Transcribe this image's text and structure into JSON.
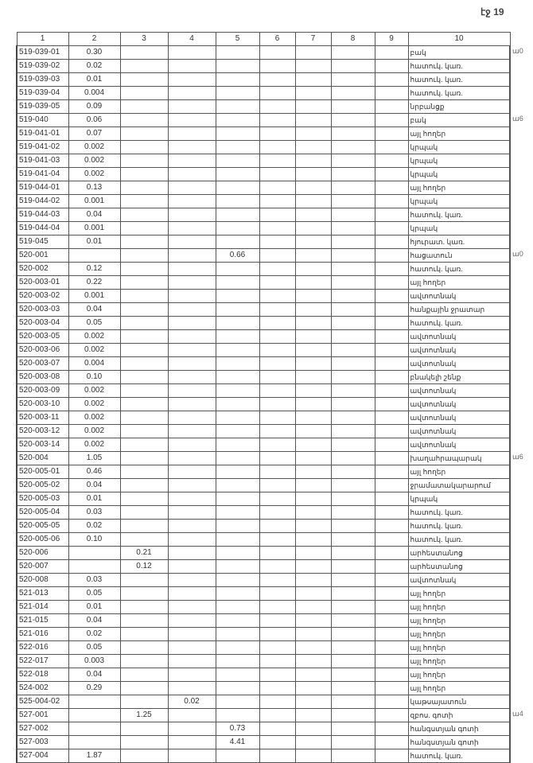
{
  "page_number": "էջ 19",
  "headers": [
    "1",
    "2",
    "3",
    "4",
    "5",
    "6",
    "7",
    "8",
    "9",
    "10"
  ],
  "rows": [
    [
      "519-039-01",
      "0.30",
      "",
      "",
      "",
      "",
      "",
      "",
      "",
      "բակ"
    ],
    [
      "519-039-02",
      "0.02",
      "",
      "",
      "",
      "",
      "",
      "",
      "",
      "հատուկ. կառ."
    ],
    [
      "519-039-03",
      "0.01",
      "",
      "",
      "",
      "",
      "",
      "",
      "",
      "հատուկ. կառ."
    ],
    [
      "519-039-04",
      "0.004",
      "",
      "",
      "",
      "",
      "",
      "",
      "",
      "հատուկ. կառ."
    ],
    [
      "519-039-05",
      "0.09",
      "",
      "",
      "",
      "",
      "",
      "",
      "",
      "նրբանցք"
    ],
    [
      "519-040",
      "0.06",
      "",
      "",
      "",
      "",
      "",
      "",
      "",
      "բակ"
    ],
    [
      "519-041-01",
      "0.07",
      "",
      "",
      "",
      "",
      "",
      "",
      "",
      "այլ հողեր"
    ],
    [
      "519-041-02",
      "0.002",
      "",
      "",
      "",
      "",
      "",
      "",
      "",
      "կրպակ"
    ],
    [
      "519-041-03",
      "0.002",
      "",
      "",
      "",
      "",
      "",
      "",
      "",
      "կրպակ"
    ],
    [
      "519-041-04",
      "0.002",
      "",
      "",
      "",
      "",
      "",
      "",
      "",
      "կրպակ"
    ],
    [
      "519-044-01",
      "0.13",
      "",
      "",
      "",
      "",
      "",
      "",
      "",
      "այլ հողեր"
    ],
    [
      "519-044-02",
      "0.001",
      "",
      "",
      "",
      "",
      "",
      "",
      "",
      "կրպակ"
    ],
    [
      "519-044-03",
      "0.04",
      "",
      "",
      "",
      "",
      "",
      "",
      "",
      "հատուկ. կառ."
    ],
    [
      "519-044-04",
      "0.001",
      "",
      "",
      "",
      "",
      "",
      "",
      "",
      "կրպակ"
    ],
    [
      "519-045",
      "0.01",
      "",
      "",
      "",
      "",
      "",
      "",
      "",
      "հյուրատ. կառ."
    ],
    [
      "520-001",
      "",
      "",
      "",
      "0.66",
      "",
      "",
      "",
      "",
      "հացատուն"
    ],
    [
      "520-002",
      "0.12",
      "",
      "",
      "",
      "",
      "",
      "",
      "",
      "հատուկ. կառ."
    ],
    [
      "520-003-01",
      "0.22",
      "",
      "",
      "",
      "",
      "",
      "",
      "",
      "այլ հողեր"
    ],
    [
      "520-003-02",
      "0.001",
      "",
      "",
      "",
      "",
      "",
      "",
      "",
      "ավտոտնակ"
    ],
    [
      "520-003-03",
      "0.04",
      "",
      "",
      "",
      "",
      "",
      "",
      "",
      "հանքային ջրատար"
    ],
    [
      "520-003-04",
      "0.05",
      "",
      "",
      "",
      "",
      "",
      "",
      "",
      "հատուկ. կառ."
    ],
    [
      "520-003-05",
      "0.002",
      "",
      "",
      "",
      "",
      "",
      "",
      "",
      "ավտոտնակ"
    ],
    [
      "520-003-06",
      "0.002",
      "",
      "",
      "",
      "",
      "",
      "",
      "",
      "ավտոտնակ"
    ],
    [
      "520-003-07",
      "0.004",
      "",
      "",
      "",
      "",
      "",
      "",
      "",
      "ավտոտնակ"
    ],
    [
      "520-003-08",
      "0.10",
      "",
      "",
      "",
      "",
      "",
      "",
      "",
      "բնակելի շենք"
    ],
    [
      "520-003-09",
      "0.002",
      "",
      "",
      "",
      "",
      "",
      "",
      "",
      "ավտոտնակ"
    ],
    [
      "520-003-10",
      "0.002",
      "",
      "",
      "",
      "",
      "",
      "",
      "",
      "ավտոտնակ"
    ],
    [
      "520-003-11",
      "0.002",
      "",
      "",
      "",
      "",
      "",
      "",
      "",
      "ավտոտնակ"
    ],
    [
      "520-003-12",
      "0.002",
      "",
      "",
      "",
      "",
      "",
      "",
      "",
      "ավտոտնակ"
    ],
    [
      "520-003-14",
      "0.002",
      "",
      "",
      "",
      "",
      "",
      "",
      "",
      "ավտոտնակ"
    ],
    [
      "520-004",
      "1.05",
      "",
      "",
      "",
      "",
      "",
      "",
      "",
      "խաղահրապարակ"
    ],
    [
      "520-005-01",
      "0.46",
      "",
      "",
      "",
      "",
      "",
      "",
      "",
      "այլ հողեր"
    ],
    [
      "520-005-02",
      "0.04",
      "",
      "",
      "",
      "",
      "",
      "",
      "",
      "ջրամատակարարում"
    ],
    [
      "520-005-03",
      "0.01",
      "",
      "",
      "",
      "",
      "",
      "",
      "",
      "կրպակ"
    ],
    [
      "520-005-04",
      "0.03",
      "",
      "",
      "",
      "",
      "",
      "",
      "",
      "հատուկ. կառ."
    ],
    [
      "520-005-05",
      "0.02",
      "",
      "",
      "",
      "",
      "",
      "",
      "",
      "հատուկ. կառ."
    ],
    [
      "520-005-06",
      "0.10",
      "",
      "",
      "",
      "",
      "",
      "",
      "",
      "հատուկ. կառ."
    ],
    [
      "520-006",
      "",
      "0.21",
      "",
      "",
      "",
      "",
      "",
      "",
      "արհեստանոց"
    ],
    [
      "520-007",
      "",
      "0.12",
      "",
      "",
      "",
      "",
      "",
      "",
      "արհեստանոց"
    ],
    [
      "520-008",
      "0.03",
      "",
      "",
      "",
      "",
      "",
      "",
      "",
      "ավտոտնակ"
    ],
    [
      "521-013",
      "0.05",
      "",
      "",
      "",
      "",
      "",
      "",
      "",
      "այլ հողեր"
    ],
    [
      "521-014",
      "0.01",
      "",
      "",
      "",
      "",
      "",
      "",
      "",
      "այլ հողեր"
    ],
    [
      "521-015",
      "0.04",
      "",
      "",
      "",
      "",
      "",
      "",
      "",
      "այլ հողեր"
    ],
    [
      "521-016",
      "0.02",
      "",
      "",
      "",
      "",
      "",
      "",
      "",
      "այլ հողեր"
    ],
    [
      "522-016",
      "0.05",
      "",
      "",
      "",
      "",
      "",
      "",
      "",
      "այլ հողեր"
    ],
    [
      "522-017",
      "0.003",
      "",
      "",
      "",
      "",
      "",
      "",
      "",
      "այլ հողեր"
    ],
    [
      "522-018",
      "0.04",
      "",
      "",
      "",
      "",
      "",
      "",
      "",
      "այլ հողեր"
    ],
    [
      "524-002",
      "0.29",
      "",
      "",
      "",
      "",
      "",
      "",
      "",
      "այլ հողեր"
    ],
    [
      "525-004-02",
      "",
      "",
      "0.02",
      "",
      "",
      "",
      "",
      "",
      "կաթսայատուն"
    ],
    [
      "527-001",
      "",
      "1.25",
      "",
      "",
      "",
      "",
      "",
      "",
      "զբոս. գոտի"
    ],
    [
      "527-002",
      "",
      "",
      "",
      "0.73",
      "",
      "",
      "",
      "",
      "հանգստյան գոտի"
    ],
    [
      "527-003",
      "",
      "",
      "",
      "4.41",
      "",
      "",
      "",
      "",
      "հանգստյան գոտի"
    ],
    [
      "527-004",
      "1.87",
      "",
      "",
      "",
      "",
      "",
      "",
      "",
      "հատուկ. կառ."
    ]
  ],
  "margin_notes": [
    {
      "row": 0,
      "text": "ա0"
    },
    {
      "row": 5,
      "text": "ա6"
    },
    {
      "row": 15,
      "text": "ա0"
    },
    {
      "row": 30,
      "text": "ա6"
    },
    {
      "row": 49,
      "text": "ա4"
    }
  ]
}
